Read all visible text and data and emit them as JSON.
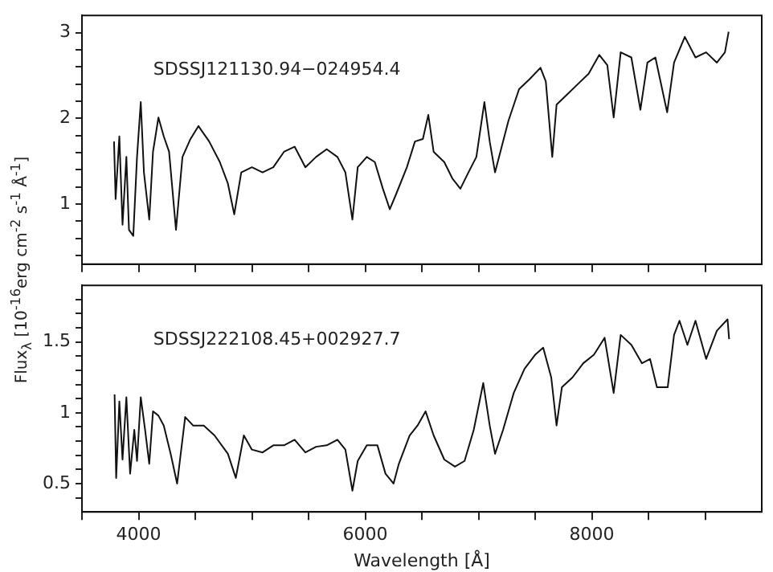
{
  "chart_data": [
    {
      "type": "line",
      "ylabel": "Flux$_{λ}$ [10$^{-16}$erg cm$^{-2}$ s$^{-1}$ Å$^{-1}$]",
      "annotations": [
        "SDSSJ121130.94−024954.4"
      ],
      "tick_labels": "y",
      "grid": false,
      "legend": false,
      "marker": "none",
      "line_style": "solid",
      "xlim": [
        3500,
        9500
      ],
      "xticks": [
        {
          "value": 3500,
          "label": null
        },
        4000,
        {
          "value": 4500,
          "label": null
        },
        {
          "value": 5000,
          "label": null
        },
        {
          "value": 5500,
          "label": null
        },
        6000,
        {
          "value": 6500,
          "label": null
        },
        {
          "value": 7000,
          "label": null
        },
        {
          "value": 7500,
          "label": null
        },
        8000,
        {
          "value": 8500,
          "label": null
        },
        {
          "value": 9000,
          "label": null
        }
      ],
      "ylim": [
        0.3,
        3.2
      ],
      "yticks": [
        {
          "value": 0.4,
          "label": null
        },
        {
          "value": 0.6,
          "label": null
        },
        {
          "value": 0.8,
          "label": null
        },
        1,
        {
          "value": 1.2,
          "label": null
        },
        {
          "value": 1.4,
          "label": null
        },
        {
          "value": 1.6,
          "label": null
        },
        {
          "value": 1.8,
          "label": null
        },
        2,
        {
          "value": 2.2,
          "label": null
        },
        {
          "value": 2.4,
          "label": null
        },
        {
          "value": 2.6,
          "label": null
        },
        {
          "value": 2.8,
          "label": null
        },
        3
      ],
      "series": [
        {
          "color": "#111111",
          "x": [
            3783,
            3797,
            3830,
            3858,
            3892,
            3915,
            3953,
            3986,
            4019,
            4047,
            4094,
            4127,
            4175,
            4222,
            4269,
            4330,
            4387,
            4458,
            4528,
            4623,
            4717,
            4788,
            4844,
            4906,
            5000,
            5094,
            5189,
            5283,
            5377,
            5472,
            5566,
            5660,
            5755,
            5825,
            5887,
            5934,
            6014,
            6085,
            6156,
            6217,
            6274,
            6368,
            6439,
            6509,
            6557,
            6604,
            6698,
            6769,
            6840,
            6911,
            6981,
            7052,
            7099,
            7146,
            7193,
            7264,
            7358,
            7453,
            7547,
            7594,
            7651,
            7689,
            7783,
            7877,
            7972,
            8066,
            8137,
            8193,
            8255,
            8349,
            8429,
            8491,
            8561,
            8665,
            8726,
            8821,
            8915,
            9009,
            9104,
            9175,
            9208
          ],
          "values": [
            1.73,
            1.06,
            1.79,
            0.76,
            1.55,
            0.7,
            0.63,
            1.55,
            2.19,
            1.37,
            0.82,
            1.61,
            2.01,
            1.79,
            1.61,
            0.7,
            1.55,
            1.76,
            1.91,
            1.73,
            1.49,
            1.24,
            0.88,
            1.37,
            1.43,
            1.37,
            1.43,
            1.61,
            1.67,
            1.43,
            1.55,
            1.64,
            1.55,
            1.37,
            0.82,
            1.43,
            1.55,
            1.49,
            1.18,
            0.94,
            1.12,
            1.43,
            1.73,
            1.76,
            2.04,
            1.61,
            1.49,
            1.3,
            1.18,
            1.37,
            1.55,
            2.19,
            1.73,
            1.37,
            1.61,
            1.97,
            2.34,
            2.46,
            2.59,
            2.43,
            1.55,
            2.16,
            2.28,
            2.4,
            2.52,
            2.74,
            2.62,
            2.01,
            2.77,
            2.71,
            2.1,
            2.65,
            2.71,
            2.07,
            2.65,
            2.95,
            2.71,
            2.77,
            2.65,
            2.77,
            3.01
          ]
        }
      ]
    },
    {
      "type": "line",
      "xlabel": "Wavelength [Å]",
      "annotations": [
        "SDSSJ222108.45+002927.7"
      ],
      "grid": false,
      "legend": false,
      "marker": "none",
      "line_style": "solid",
      "xlim": [
        3500,
        9500
      ],
      "xticks": [
        {
          "value": 3500,
          "label": null
        },
        4000,
        {
          "value": 4500,
          "label": null
        },
        {
          "value": 5000,
          "label": null
        },
        {
          "value": 5500,
          "label": null
        },
        6000,
        {
          "value": 6500,
          "label": null
        },
        {
          "value": 7000,
          "label": null
        },
        {
          "value": 7500,
          "label": null
        },
        8000,
        {
          "value": 8500,
          "label": null
        },
        {
          "value": 9000,
          "label": null
        }
      ],
      "ylim": [
        0.3,
        1.9
      ],
      "yticks": [
        {
          "value": 0.4,
          "label": null
        },
        0.5,
        {
          "value": 0.6,
          "label": null
        },
        {
          "value": 0.7,
          "label": null
        },
        {
          "value": 0.8,
          "label": null
        },
        {
          "value": 0.9,
          "label": null
        },
        1,
        {
          "value": 1.1,
          "label": null
        },
        {
          "value": 1.2,
          "label": null
        },
        {
          "value": 1.3,
          "label": null
        },
        {
          "value": 1.4,
          "label": null
        },
        1.5,
        {
          "value": 1.6,
          "label": null
        },
        {
          "value": 1.7,
          "label": null
        },
        {
          "value": 1.8,
          "label": null
        }
      ],
      "series": [
        {
          "color": "#111111",
          "x": [
            3788,
            3802,
            3830,
            3858,
            3892,
            3925,
            3962,
            3986,
            4019,
            4057,
            4094,
            4127,
            4175,
            4222,
            4283,
            4340,
            4411,
            4481,
            4575,
            4670,
            4788,
            4858,
            4929,
            5000,
            5094,
            5189,
            5283,
            5377,
            5472,
            5566,
            5660,
            5755,
            5825,
            5887,
            5934,
            6014,
            6108,
            6179,
            6250,
            6297,
            6392,
            6462,
            6533,
            6604,
            6698,
            6792,
            6877,
            6958,
            7042,
            7099,
            7146,
            7217,
            7311,
            7406,
            7500,
            7571,
            7642,
            7689,
            7736,
            7830,
            7925,
            8019,
            8113,
            8193,
            8255,
            8349,
            8443,
            8514,
            8575,
            8670,
            8726,
            8774,
            8844,
            8915,
            9009,
            9104,
            9198,
            9212
          ],
          "values": [
            1.13,
            0.54,
            1.08,
            0.67,
            1.11,
            0.57,
            0.88,
            0.66,
            1.11,
            0.88,
            0.64,
            1.01,
            0.98,
            0.91,
            0.71,
            0.5,
            0.97,
            0.91,
            0.91,
            0.84,
            0.71,
            0.54,
            0.84,
            0.74,
            0.72,
            0.77,
            0.77,
            0.81,
            0.72,
            0.76,
            0.77,
            0.81,
            0.74,
            0.45,
            0.66,
            0.77,
            0.77,
            0.57,
            0.5,
            0.64,
            0.84,
            0.91,
            1.01,
            0.84,
            0.67,
            0.62,
            0.66,
            0.88,
            1.21,
            0.91,
            0.71,
            0.88,
            1.14,
            1.31,
            1.41,
            1.46,
            1.25,
            0.91,
            1.18,
            1.25,
            1.35,
            1.41,
            1.53,
            1.14,
            1.55,
            1.48,
            1.35,
            1.38,
            1.18,
            1.18,
            1.55,
            1.65,
            1.48,
            1.65,
            1.38,
            1.58,
            1.66,
            1.52
          ]
        }
      ]
    }
  ]
}
